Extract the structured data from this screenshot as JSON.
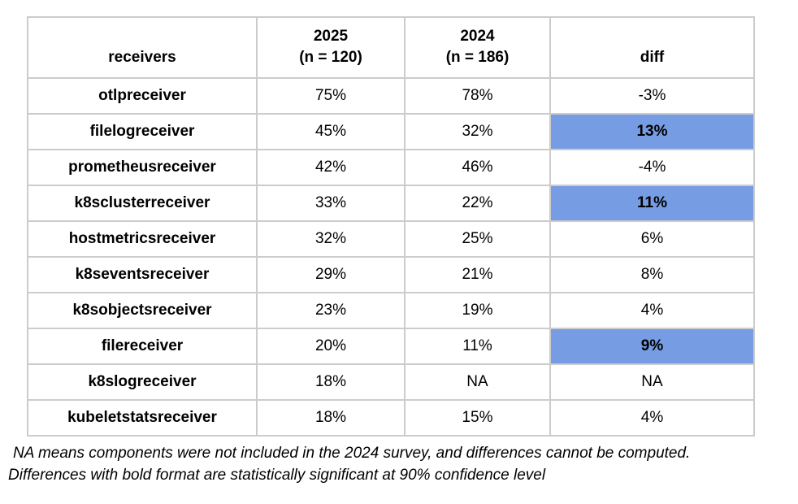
{
  "header": {
    "receivers": "receivers",
    "col2025_line1": "2025",
    "col2025_line2": "(n = 120)",
    "col2024_line1": "2024",
    "col2024_line2": "(n = 186)",
    "diff": "diff"
  },
  "table": {
    "rows": [
      {
        "name": "otlpreceiver",
        "v2025": "75%",
        "v2024": "78%",
        "diff": "-3%",
        "significant": false
      },
      {
        "name": "filelogreceiver",
        "v2025": "45%",
        "v2024": "32%",
        "diff": "13%",
        "significant": true
      },
      {
        "name": "prometheusreceiver",
        "v2025": "42%",
        "v2024": "46%",
        "diff": "-4%",
        "significant": false
      },
      {
        "name": "k8sclusterreceiver",
        "v2025": "33%",
        "v2024": "22%",
        "diff": "11%",
        "significant": true
      },
      {
        "name": "hostmetricsreceiver",
        "v2025": "32%",
        "v2024": "25%",
        "diff": "6%",
        "significant": false
      },
      {
        "name": "k8seventsreceiver",
        "v2025": "29%",
        "v2024": "21%",
        "diff": "8%",
        "significant": false
      },
      {
        "name": "k8sobjectsreceiver",
        "v2025": "23%",
        "v2024": "19%",
        "diff": "4%",
        "significant": false
      },
      {
        "name": "filereceiver",
        "v2025": "20%",
        "v2024": "11%",
        "diff": "9%",
        "significant": true
      },
      {
        "name": "k8slogreceiver",
        "v2025": "18%",
        "v2024": "NA",
        "diff": "NA",
        "significant": false
      },
      {
        "name": "kubeletstatsreceiver",
        "v2025": "18%",
        "v2024": "15%",
        "diff": "4%",
        "significant": false
      }
    ]
  },
  "footnotes": [
    "NA means components were not included in the 2024 survey, and differences cannot be computed.",
    "Differences with bold format are statistically significant at 90% confidence level"
  ],
  "colors": {
    "highlight": "#769ce3",
    "border": "#cccccc"
  },
  "chart_data": {
    "type": "table",
    "title": "",
    "columns": [
      "receivers",
      "2025 (n = 120)",
      "2024 (n = 186)",
      "diff"
    ],
    "sample_sizes": {
      "2025": 120,
      "2024": 186
    },
    "rows": [
      {
        "receiver": "otlpreceiver",
        "pct_2025": 75,
        "pct_2024": 78,
        "diff_pct": -3,
        "significant_90pct": false
      },
      {
        "receiver": "filelogreceiver",
        "pct_2025": 45,
        "pct_2024": 32,
        "diff_pct": 13,
        "significant_90pct": true
      },
      {
        "receiver": "prometheusreceiver",
        "pct_2025": 42,
        "pct_2024": 46,
        "diff_pct": -4,
        "significant_90pct": false
      },
      {
        "receiver": "k8sclusterreceiver",
        "pct_2025": 33,
        "pct_2024": 22,
        "diff_pct": 11,
        "significant_90pct": true
      },
      {
        "receiver": "hostmetricsreceiver",
        "pct_2025": 32,
        "pct_2024": 25,
        "diff_pct": 6,
        "significant_90pct": false
      },
      {
        "receiver": "k8seventsreceiver",
        "pct_2025": 29,
        "pct_2024": 21,
        "diff_pct": 8,
        "significant_90pct": false
      },
      {
        "receiver": "k8sobjectsreceiver",
        "pct_2025": 23,
        "pct_2024": 19,
        "diff_pct": 4,
        "significant_90pct": false
      },
      {
        "receiver": "filereceiver",
        "pct_2025": 20,
        "pct_2024": 11,
        "diff_pct": 9,
        "significant_90pct": true
      },
      {
        "receiver": "k8slogreceiver",
        "pct_2025": 18,
        "pct_2024": null,
        "diff_pct": null,
        "significant_90pct": false
      },
      {
        "receiver": "kubeletstatsreceiver",
        "pct_2025": 18,
        "pct_2024": 15,
        "diff_pct": 4,
        "significant_90pct": false
      }
    ],
    "notes": [
      "NA means components were not included in the 2024 survey, and differences cannot be computed.",
      "Differences with bold format are statistically significant at 90% confidence level"
    ],
    "legend_position": "none",
    "grid": true
  }
}
